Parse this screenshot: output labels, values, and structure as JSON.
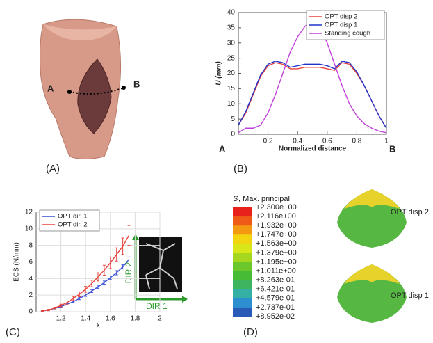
{
  "chart_data": [
    {
      "type": "line",
      "panel_label": "(B)",
      "ylabel": "U (mm)",
      "xlabel": "Normalized distance",
      "start_label": "A",
      "end_label": "B",
      "x": [
        0,
        0.05,
        0.1,
        0.15,
        0.2,
        0.25,
        0.3,
        0.35,
        0.4,
        0.45,
        0.5,
        0.55,
        0.6,
        0.65,
        0.7,
        0.75,
        0.8,
        0.85,
        0.9,
        0.95,
        1
      ],
      "xlim": [
        0,
        1
      ],
      "xticks": [
        0.2,
        0.4,
        0.6,
        0.8,
        1
      ],
      "ylim": [
        0,
        40
      ],
      "yticks": [
        0,
        5,
        10,
        15,
        20,
        25,
        30,
        35,
        40
      ],
      "grid": false,
      "legend": "upper right",
      "series": [
        {
          "name": "OPT disp 2",
          "color": "#e8433a",
          "values": [
            3,
            7,
            13,
            19,
            22.5,
            23.5,
            23,
            21.5,
            21.5,
            22,
            22,
            22,
            21.5,
            21,
            23.5,
            23,
            20,
            16,
            11,
            6,
            2
          ]
        },
        {
          "name": "OPT disp 1",
          "color": "#2233cc",
          "values": [
            3,
            7.5,
            13.5,
            19.5,
            23,
            24,
            23.5,
            22,
            22.5,
            23,
            23,
            23,
            22.5,
            21.5,
            24,
            23.5,
            20.5,
            16,
            11,
            6,
            2
          ]
        },
        {
          "name": "Standing cough",
          "color": "#c040d8",
          "values": [
            0.5,
            2,
            2,
            3,
            7,
            13,
            20,
            27,
            32,
            35.5,
            37.5,
            35,
            30,
            23,
            16,
            10,
            6,
            3.5,
            2,
            1,
            0.5
          ]
        }
      ]
    },
    {
      "type": "errorbar",
      "panel_label": "(C)",
      "ylabel": "ECS (N/mm)",
      "xlabel": "λ",
      "inset_x_label": "DIR 1",
      "inset_y_label": "DIR 2",
      "x": [
        1.05,
        1.1,
        1.15,
        1.2,
        1.25,
        1.3,
        1.35,
        1.4,
        1.45,
        1.5,
        1.55,
        1.6,
        1.65,
        1.7,
        1.75
      ],
      "xlim": [
        1,
        2
      ],
      "xticks": [
        1.2,
        1.4,
        1.6,
        1.8,
        2
      ],
      "ylim": [
        0,
        12
      ],
      "yticks": [
        0,
        2,
        4,
        6,
        8,
        10,
        12
      ],
      "grid": true,
      "legend": "upper left",
      "series": [
        {
          "name": "OPT dir. 1",
          "color": "#3a4fd8",
          "values": [
            0.1,
            0.2,
            0.4,
            0.6,
            0.9,
            1.2,
            1.6,
            2.0,
            2.5,
            3.0,
            3.5,
            4.1,
            4.7,
            5.4,
            6.3
          ],
          "errors": [
            0.05,
            0.05,
            0.08,
            0.1,
            0.1,
            0.12,
            0.15,
            0.15,
            0.18,
            0.2,
            0.2,
            0.22,
            0.25,
            0.25,
            0.3
          ]
        },
        {
          "name": "OPT dir. 2",
          "color": "#e8433a",
          "values": [
            0.1,
            0.2,
            0.45,
            0.75,
            1.1,
            1.6,
            2.1,
            2.7,
            3.4,
            4.2,
            5.0,
            5.9,
            6.9,
            7.9,
            9.2
          ],
          "errors": [
            0.05,
            0.08,
            0.1,
            0.15,
            0.2,
            0.25,
            0.3,
            0.35,
            0.4,
            0.5,
            0.6,
            0.7,
            0.8,
            1.0,
            1.2
          ]
        }
      ]
    }
  ],
  "panel_a": {
    "label": "(A)",
    "point_a": "A",
    "point_b": "B"
  },
  "panel_d": {
    "label": "(D)",
    "legend_symbol": "S",
    "legend_title": ", Max. principal",
    "levels": [
      "+2.300e+00",
      "+2.116e+00",
      "+1.932e+00",
      "+1.747e+00",
      "+1.563e+00",
      "+1.379e+00",
      "+1.195e+00",
      "+1.011e+00",
      "+8.263e-01",
      "+6.421e-01",
      "+4.579e-01",
      "+2.737e-01",
      "+8.952e-02"
    ],
    "band_colors": [
      "#e8211c",
      "#ef5a16",
      "#f39a12",
      "#f3d411",
      "#d9e619",
      "#a4d71e",
      "#6cc72b",
      "#48bb36",
      "#3fb45e",
      "#34b0a4",
      "#2c8fcf",
      "#2a5ab8",
      "#24318f"
    ],
    "captions": [
      "OPT disp 2",
      "OPT disp 1"
    ]
  }
}
